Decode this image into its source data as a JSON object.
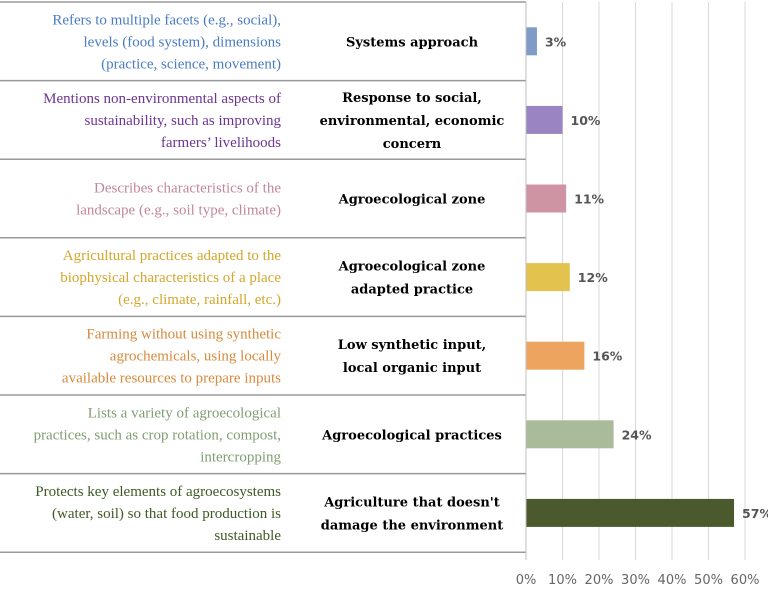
{
  "chart_data": {
    "type": "bar",
    "orientation": "horizontal",
    "categories": [
      "Systems approach",
      "Response to social, environmental, economic concern",
      "Agroecological zone",
      "Agroecological zone adapted practice",
      "Low synthetic input, local organic input",
      "Agroecological practices",
      "Agriculture that doesn't damage the environment"
    ],
    "category_lines": [
      [
        "Systems approach"
      ],
      [
        "Response to social,",
        "environmental, economic",
        "concern"
      ],
      [
        "Agroecological zone"
      ],
      [
        "Agroecological zone",
        "adapted practice"
      ],
      [
        "Low synthetic input,",
        "local organic input"
      ],
      [
        "Agroecological practices"
      ],
      [
        "Agriculture that doesn't",
        "damage the environment"
      ]
    ],
    "descriptions": [
      [
        "Refers to multiple facets (e.g., social),",
        "levels (food system), dimensions",
        "(practice, science, movement)"
      ],
      [
        "Mentions non-environmental aspects of",
        "sustainability, such as improving",
        "farmers’ livelihoods"
      ],
      [
        "Describes characteristics of the",
        "landscape (e.g., soil type, climate)"
      ],
      [
        "Agricultural practices adapted to the",
        "biophysical characteristics of a place",
        "(e.g., climate, rainfall, etc.)"
      ],
      [
        "Farming without using synthetic",
        "agrochemicals, using locally",
        "available resources to prepare inputs"
      ],
      [
        "Lists a variety of agroecological",
        "practices, such as crop rotation, compost,",
        "intercropping"
      ],
      [
        "Protects key elements of agroecosystems",
        "(water, soil) so that food production is",
        "sustainable"
      ]
    ],
    "values": [
      3,
      10,
      11,
      12,
      16,
      24,
      57
    ],
    "value_labels": [
      "3%",
      "10%",
      "11%",
      "12%",
      "16%",
      "24%",
      "57%"
    ],
    "colors": [
      "#7f9cc9",
      "#9a85c2",
      "#cf94a4",
      "#e3c24e",
      "#eda45e",
      "#a9bb99",
      "#4a5a2c"
    ],
    "desc_colors": [
      "#4a7cc3",
      "#6e3593",
      "#c1889a",
      "#d4a62c",
      "#d68a3c",
      "#7f9e72",
      "#3d5a24"
    ],
    "x_ticks": [
      "0%",
      "10%",
      "20%",
      "30%",
      "40%",
      "50%",
      "60%"
    ],
    "xlim": [
      0,
      60
    ],
    "grid": true,
    "title": "",
    "xlabel": "",
    "ylabel": ""
  }
}
